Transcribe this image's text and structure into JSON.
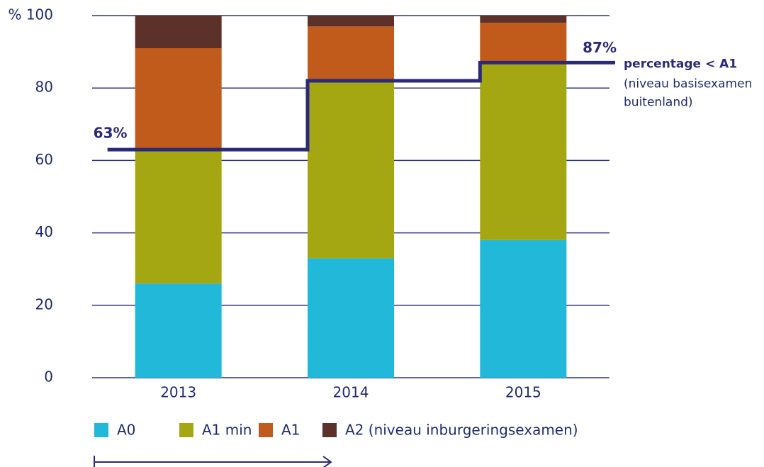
{
  "chart_data": {
    "type": "bar",
    "stacked": true,
    "categories": [
      "2013",
      "2014",
      "2015"
    ],
    "series": [
      {
        "name": "A0",
        "color": "#22b8d9",
        "values": [
          26,
          33,
          38
        ]
      },
      {
        "name": "A1 min",
        "color": "#a4a712",
        "values": [
          37,
          49,
          49
        ]
      },
      {
        "name": "A1",
        "color": "#c05b1c",
        "values": [
          28,
          15,
          11
        ]
      },
      {
        "name": "A2 (niveau inburgeringsexamen)",
        "color": "#5b3129",
        "values": [
          9,
          3,
          2
        ]
      }
    ],
    "line": {
      "type": "step",
      "name": "percentage < A1",
      "color": "#2b2a7a",
      "values": [
        63,
        82,
        87
      ],
      "value_labels": [
        "63%",
        null,
        "87%"
      ],
      "annotation": [
        "(niveau basisexamen",
        "buitenland)"
      ]
    },
    "ylim": [
      0,
      100
    ],
    "yticks": [
      0,
      20,
      40,
      60,
      80,
      {
        "value": 100,
        "label": "% 100"
      }
    ],
    "grid": true
  }
}
